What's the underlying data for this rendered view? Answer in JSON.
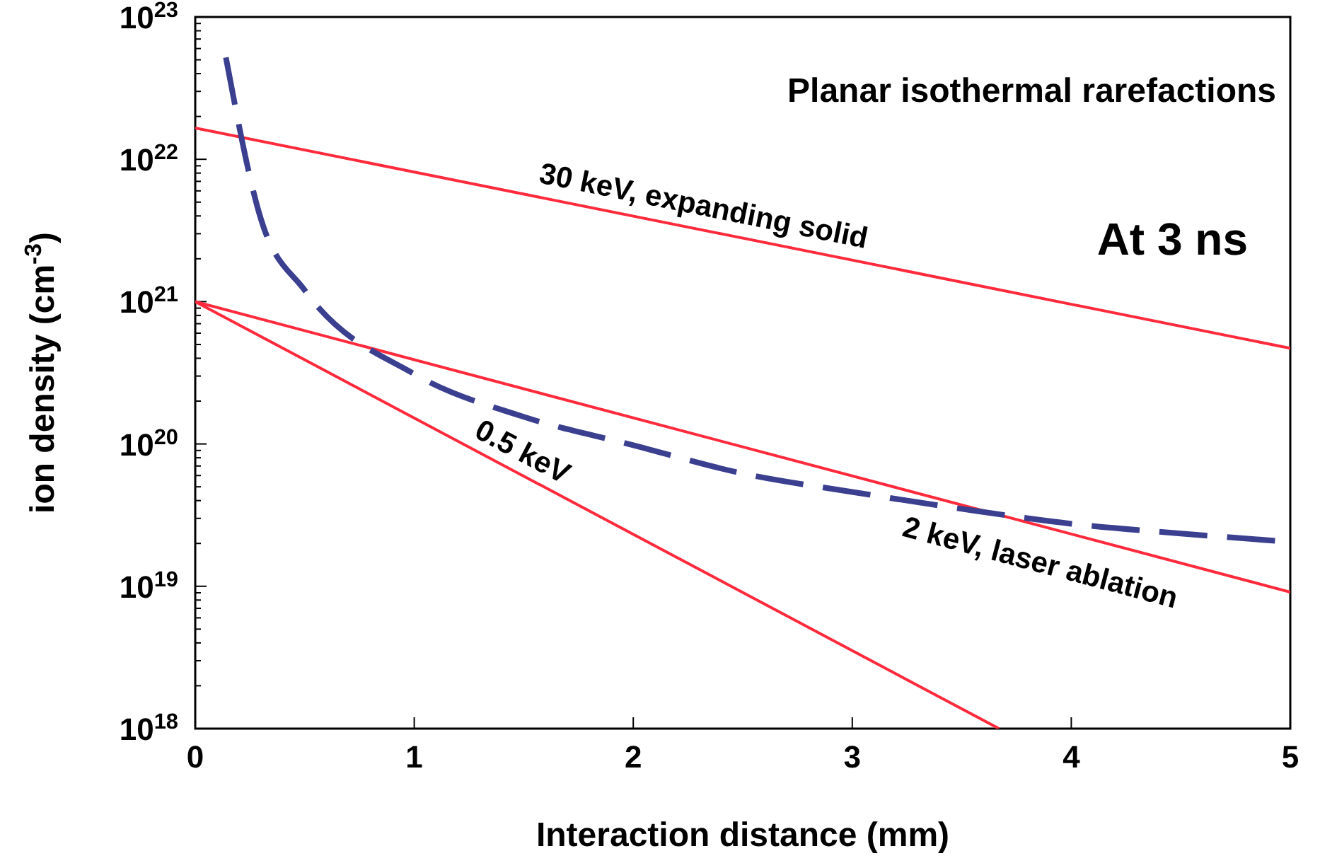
{
  "chart_data": {
    "type": "line",
    "xlabel": "Interaction distance (mm)",
    "ylabel": "ion density (cm$^{-3}$)",
    "log": "y",
    "xlim": [
      0,
      5
    ],
    "xticks": [
      0,
      1,
      2,
      3,
      4,
      5
    ],
    "ylim": [
      1e+18,
      1e+23
    ],
    "yticks": [
      {
        "value": 1e+18,
        "label": "10$^{18}$"
      },
      {
        "value": 1e+19,
        "label": "10$^{19}$"
      },
      {
        "value": 1e+20,
        "label": "10$^{20}$"
      },
      {
        "value": 1e+21,
        "label": "10$^{21}$"
      },
      {
        "value": 1e+22,
        "label": "10$^{22}$"
      },
      {
        "value": 1e+23,
        "label": "10$^{23}$"
      }
    ],
    "grid": false,
    "annotations": [
      "Planar isothermal rarefactions",
      "At 3 ns"
    ],
    "series": [
      {
        "name": "30 keV, expanding solid",
        "color": "#ff2a3c",
        "line_style": "solid",
        "x": [
          0,
          5
        ],
        "values": [
          1.66e+22,
          4.7e+20
        ]
      },
      {
        "name": "2 keV, laser ablation",
        "color": "#ff2a3c",
        "line_style": "solid",
        "x": [
          0,
          5
        ],
        "values": [
          1e+21,
          9.1e+18
        ]
      },
      {
        "name": "0.5 keV",
        "color": "#ff2a3c",
        "line_style": "solid",
        "x": [
          0,
          3.67
        ],
        "values": [
          1e+21,
          1e+18
        ]
      },
      {
        "color": "#3b3f8f",
        "line_style": "dashed",
        "x": [
          0.14,
          0.3,
          0.5,
          1,
          1.5,
          2,
          2.5,
          3,
          3.5,
          4,
          4.5,
          5
        ],
        "values": [
          5.2e+22,
          3.8e+21,
          1.2e+21,
          3.1e+20,
          1.55e+20,
          9.8e+19,
          6.2e+19,
          4.6e+19,
          3.5e+19,
          2.75e+19,
          2.35e+19,
          2.05e+19
        ]
      }
    ]
  }
}
